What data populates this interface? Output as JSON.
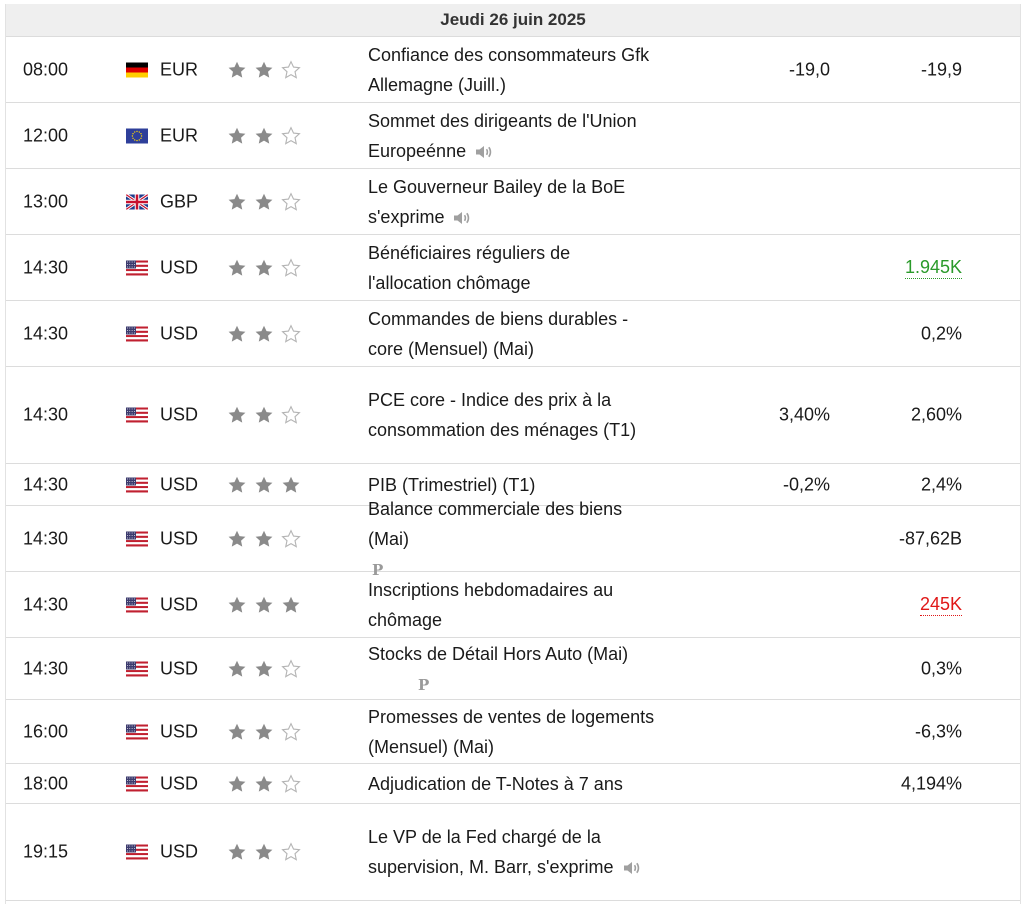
{
  "date_header": "Jeudi 26 juin 2025",
  "events": [
    {
      "time": "08:00",
      "flag": "de",
      "currency": "EUR",
      "stars": 2,
      "title": "Confiance des consommateurs Gfk Allemagne (Juill.)",
      "icon": "",
      "forecast": "-19,0",
      "previous": "-19,9",
      "previous_color": "",
      "height": 66
    },
    {
      "time": "12:00",
      "flag": "eu",
      "currency": "EUR",
      "stars": 2,
      "title": "Sommet des dirigeants de l'Union Europeénne",
      "icon": "speaker-icon",
      "forecast": "",
      "previous": "",
      "previous_color": "",
      "height": 66
    },
    {
      "time": "13:00",
      "flag": "gb",
      "currency": "GBP",
      "stars": 2,
      "title": "Le Gouverneur Bailey de la BoE s'exprime",
      "icon": "speaker-icon",
      "forecast": "",
      "previous": "",
      "previous_color": "",
      "height": 66
    },
    {
      "time": "14:30",
      "flag": "us",
      "currency": "USD",
      "stars": 2,
      "title": "Bénéficiaires réguliers de l'allocation chômage",
      "icon": "",
      "forecast": "",
      "previous": "1.945K",
      "previous_color": "#2a9a2a",
      "height": 66
    },
    {
      "time": "14:30",
      "flag": "us",
      "currency": "USD",
      "stars": 2,
      "title": "Commandes de biens durables - core (Mensuel) (Mai)",
      "icon": "",
      "forecast": "",
      "previous": "0,2%",
      "previous_color": "",
      "height": 66
    },
    {
      "time": "14:30",
      "flag": "us",
      "currency": "USD",
      "stars": 2,
      "title": "PCE core - Indice des prix à la consommation des ménages (T1)",
      "icon": "",
      "forecast": "3,40%",
      "previous": "2,60%",
      "previous_color": "",
      "height": 97
    },
    {
      "time": "14:30",
      "flag": "us",
      "currency": "USD",
      "stars": 3,
      "title": "PIB (Trimestriel) (T1)",
      "icon": "",
      "forecast": "-0,2%",
      "previous": "2,4%",
      "previous_color": "",
      "height": 42
    },
    {
      "time": "14:30",
      "flag": "us",
      "currency": "USD",
      "stars": 2,
      "title": "Balance commerciale des biens (Mai)",
      "icon": "preliminary-icon",
      "forecast": "",
      "previous": "-87,62B",
      "previous_color": "",
      "height": 66
    },
    {
      "time": "14:30",
      "flag": "us",
      "currency": "USD",
      "stars": 3,
      "title": "Inscriptions hebdomadaires au chômage",
      "icon": "",
      "forecast": "",
      "previous": "245K",
      "previous_color": "#e01818",
      "height": 66
    },
    {
      "time": "14:30",
      "flag": "us",
      "currency": "USD",
      "stars": 2,
      "title": "Stocks de Détail Hors Auto (Mai)",
      "icon": "preliminary-icon",
      "forecast": "",
      "previous": "0,3%",
      "previous_color": "",
      "height": 62
    },
    {
      "time": "16:00",
      "flag": "us",
      "currency": "USD",
      "stars": 2,
      "title": "Promesses de ventes de logements (Mensuel) (Mai)",
      "icon": "",
      "forecast": "",
      "previous": "-6,3%",
      "previous_color": "",
      "height": 64
    },
    {
      "time": "18:00",
      "flag": "us",
      "currency": "USD",
      "stars": 2,
      "title": "Adjudication de T-Notes à 7 ans",
      "icon": "",
      "forecast": "",
      "previous": "4,194%",
      "previous_color": "",
      "height": 40
    },
    {
      "time": "19:15",
      "flag": "us",
      "currency": "USD",
      "stars": 2,
      "title": "Le VP de la Fed chargé de la supervision, M. Barr, s'exprime",
      "icon": "speaker-icon",
      "forecast": "",
      "previous": "",
      "previous_color": "",
      "height": 97
    }
  ],
  "preliminary_letter": "P"
}
